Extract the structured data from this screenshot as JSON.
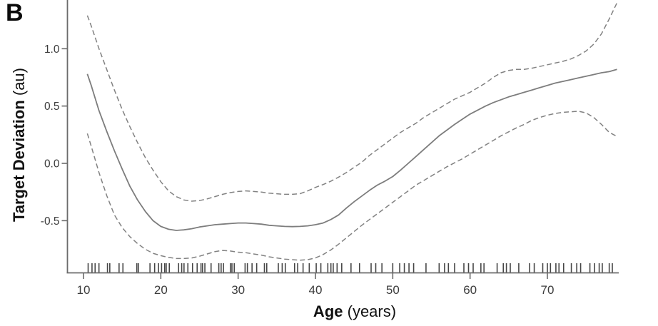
{
  "panel_label": "B",
  "colors": {
    "background": "#ffffff",
    "fit_line": "#7d7d7d",
    "ci_line": "#828282",
    "axis_line": "#6b6b6b",
    "tick_text": "#3c3c3c",
    "rug": "#333333",
    "label_text": "#111111"
  },
  "chart_data": {
    "type": "line",
    "title": "",
    "xlabel_bold": "Age",
    "xlabel_unit": "(years)",
    "ylabel_bold": "Target Deviation",
    "ylabel_unit": "(au)",
    "xlim": [
      8,
      79.3
    ],
    "ylim": [
      -0.95,
      1.42
    ],
    "x_ticks": [
      10,
      20,
      30,
      40,
      50,
      60,
      70
    ],
    "x_tick_labels": [
      "10",
      "20",
      "30",
      "40",
      "50",
      "60",
      "70"
    ],
    "y_ticks": [
      1.0,
      0.5,
      0.0,
      -0.5
    ],
    "y_tick_labels": [
      "1.0",
      "0.5",
      "0.0",
      "-0.5"
    ],
    "grid": false,
    "legend": "none",
    "x": [
      10.5,
      11,
      12,
      13,
      14,
      15,
      16,
      17,
      18,
      19,
      20,
      21,
      22,
      23,
      24,
      25,
      26,
      27,
      28,
      29,
      30,
      31,
      32,
      33,
      34,
      35,
      36,
      37,
      38,
      39,
      40,
      41,
      42,
      43,
      44,
      45,
      46,
      47,
      48,
      49,
      50,
      51,
      52,
      53,
      54,
      55,
      56,
      57,
      58,
      59,
      60,
      61,
      62,
      63,
      64,
      65,
      66,
      67,
      68,
      69,
      70,
      71,
      72,
      73,
      74,
      75,
      76,
      77,
      78,
      79
    ],
    "series": [
      {
        "name": "fit",
        "style": "solid",
        "values": [
          0.78,
          0.68,
          0.46,
          0.28,
          0.11,
          -0.05,
          -0.2,
          -0.32,
          -0.42,
          -0.5,
          -0.55,
          -0.575,
          -0.585,
          -0.58,
          -0.57,
          -0.555,
          -0.545,
          -0.535,
          -0.53,
          -0.525,
          -0.52,
          -0.52,
          -0.525,
          -0.53,
          -0.54,
          -0.545,
          -0.55,
          -0.552,
          -0.55,
          -0.545,
          -0.535,
          -0.52,
          -0.49,
          -0.45,
          -0.39,
          -0.335,
          -0.285,
          -0.235,
          -0.19,
          -0.155,
          -0.115,
          -0.06,
          0.0,
          0.06,
          0.12,
          0.18,
          0.24,
          0.29,
          0.34,
          0.385,
          0.43,
          0.465,
          0.5,
          0.53,
          0.555,
          0.58,
          0.6,
          0.62,
          0.64,
          0.66,
          0.68,
          0.7,
          0.715,
          0.73,
          0.745,
          0.76,
          0.775,
          0.79,
          0.8,
          0.82
        ]
      },
      {
        "name": "upper-ci",
        "style": "dashed",
        "values": [
          1.29,
          1.2,
          1.0,
          0.82,
          0.64,
          0.47,
          0.32,
          0.18,
          0.05,
          -0.06,
          -0.16,
          -0.24,
          -0.29,
          -0.32,
          -0.33,
          -0.325,
          -0.31,
          -0.29,
          -0.27,
          -0.255,
          -0.245,
          -0.24,
          -0.245,
          -0.25,
          -0.26,
          -0.265,
          -0.27,
          -0.27,
          -0.265,
          -0.24,
          -0.21,
          -0.185,
          -0.155,
          -0.12,
          -0.08,
          -0.035,
          0.01,
          0.07,
          0.12,
          0.17,
          0.22,
          0.27,
          0.31,
          0.35,
          0.4,
          0.44,
          0.48,
          0.52,
          0.56,
          0.59,
          0.62,
          0.66,
          0.7,
          0.75,
          0.79,
          0.81,
          0.82,
          0.82,
          0.83,
          0.845,
          0.86,
          0.875,
          0.89,
          0.91,
          0.94,
          0.98,
          1.04,
          1.13,
          1.26,
          1.4
        ]
      },
      {
        "name": "lower-ci",
        "style": "dashed",
        "values": [
          0.26,
          0.15,
          -0.08,
          -0.28,
          -0.45,
          -0.56,
          -0.64,
          -0.7,
          -0.75,
          -0.785,
          -0.805,
          -0.82,
          -0.83,
          -0.83,
          -0.825,
          -0.81,
          -0.79,
          -0.77,
          -0.76,
          -0.765,
          -0.775,
          -0.78,
          -0.79,
          -0.8,
          -0.815,
          -0.825,
          -0.835,
          -0.84,
          -0.845,
          -0.84,
          -0.825,
          -0.795,
          -0.755,
          -0.705,
          -0.65,
          -0.595,
          -0.54,
          -0.49,
          -0.44,
          -0.39,
          -0.34,
          -0.29,
          -0.24,
          -0.19,
          -0.15,
          -0.11,
          -0.07,
          -0.03,
          0.005,
          0.04,
          0.08,
          0.12,
          0.16,
          0.2,
          0.24,
          0.275,
          0.31,
          0.34,
          0.375,
          0.4,
          0.42,
          0.435,
          0.445,
          0.45,
          0.455,
          0.44,
          0.4,
          0.34,
          0.27,
          0.235
        ]
      }
    ],
    "rug_ages": [
      10.6,
      11.1,
      11.5,
      12.0,
      13.1,
      13.4,
      14.6,
      15.1,
      16.9,
      17.1,
      18.6,
      19.2,
      19.7,
      20.1,
      20.5,
      20.7,
      21.1,
      22.3,
      22.7,
      23.0,
      23.5,
      24.1,
      24.7,
      25.2,
      25.4,
      25.7,
      26.5,
      27.5,
      27.8,
      28.1,
      29.0,
      29.2,
      29.5,
      30.9,
      31.2,
      31.8,
      32.4,
      33.4,
      33.7,
      35.2,
      35.7,
      36.1,
      37.3,
      37.7,
      38.4,
      39.2,
      40.1,
      40.7,
      41.6,
      42.0,
      42.3,
      42.8,
      43.4,
      44.6,
      45.7,
      47.2,
      47.8,
      48.6,
      50.0,
      50.9,
      51.5,
      52.1,
      52.7,
      54.3,
      56.0,
      56.7,
      57.2,
      58.0,
      59.2,
      59.8,
      60.4,
      61.4,
      61.8,
      63.5,
      64.3,
      64.7,
      65.2,
      66.3,
      67.7,
      68.3,
      69.4,
      70.0,
      70.4,
      71.1,
      71.5,
      72.1,
      73.1,
      73.8,
      74.3,
      75.5,
      76.1,
      76.7,
      77.1,
      78.0,
      78.4
    ]
  }
}
